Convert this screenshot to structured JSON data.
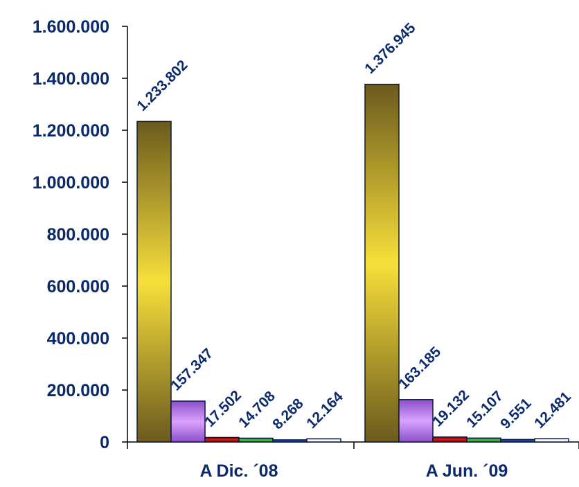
{
  "chart_data": {
    "type": "bar",
    "title": "",
    "xlabel": "",
    "ylabel": "",
    "categories": [
      "A Dic. ´08",
      "A Jun. ´09"
    ],
    "ylim": [
      0,
      1600000
    ],
    "yticks": [
      0,
      200000,
      400000,
      600000,
      800000,
      1000000,
      1200000,
      1400000,
      1600000
    ],
    "ytick_labels": [
      "0",
      "200.000",
      "400.000",
      "600.000",
      "800.000",
      "1.000.000",
      "1.200.000",
      "1.400.000",
      "1.600.000"
    ],
    "grid": false,
    "legend": "none",
    "series": [
      {
        "values": [
          1233802,
          1376945
        ],
        "labels": [
          "1.233.802",
          "1.376.945"
        ],
        "color": "#f7df3a",
        "shade": "#6b5a1e"
      },
      {
        "values": [
          157347,
          163185
        ],
        "labels": [
          "157.347",
          "163.185"
        ],
        "color": "#d9a3ff",
        "shade": "#8a4fc9"
      },
      {
        "values": [
          17502,
          19132
        ],
        "labels": [
          "17.502",
          "19.132"
        ],
        "color": "#e01515",
        "shade": "#6a0808"
      },
      {
        "values": [
          14708,
          15107
        ],
        "labels": [
          "14.708",
          "15.107"
        ],
        "color": "#49c44a",
        "shade": "#1f6e21"
      },
      {
        "values": [
          8268,
          9551
        ],
        "labels": [
          "8.268",
          "9.551"
        ],
        "color": "#2b57c2",
        "shade": "#0a1f5c"
      },
      {
        "values": [
          12164,
          12481
        ],
        "labels": [
          "12.164",
          "12.481"
        ],
        "color": "#ffffff",
        "shade": "#dfe6f2"
      }
    ],
    "colors": {
      "text": "#0b2a6e",
      "axis": "#000000",
      "bar_outline": "#0b1a3a"
    }
  }
}
